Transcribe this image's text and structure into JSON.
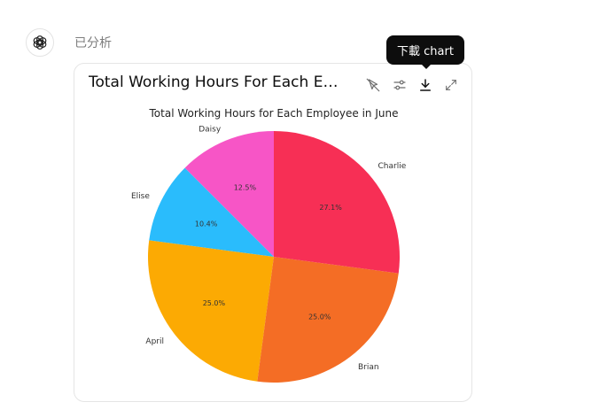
{
  "status_text": "已分析",
  "card": {
    "title": "Total Working Hours For Each Employee in June",
    "tooltip": "下載 chart"
  },
  "icons": {
    "avatar": "openai-logo-icon",
    "interactive_off": "cursor-off-icon",
    "settings": "sliders-icon",
    "download": "download-icon",
    "expand": "expand-icon"
  },
  "chart_data": {
    "type": "pie",
    "title": "Total Working Hours for Each Employee in June",
    "start_angle_deg": 90,
    "counterclockwise": true,
    "slices": [
      {
        "label": "Daisy",
        "value": 12.5,
        "pct_label": "12.5%",
        "color": "#f755c6"
      },
      {
        "label": "Elise",
        "value": 10.4,
        "pct_label": "10.4%",
        "color": "#2abcfc"
      },
      {
        "label": "April",
        "value": 25.0,
        "pct_label": "25.0%",
        "color": "#fcaa03"
      },
      {
        "label": "Brian",
        "value": 25.0,
        "pct_label": "25.0%",
        "color": "#f46d25"
      },
      {
        "label": "Charlie",
        "value": 27.1,
        "pct_label": "27.1%",
        "color": "#f72f55"
      }
    ]
  }
}
